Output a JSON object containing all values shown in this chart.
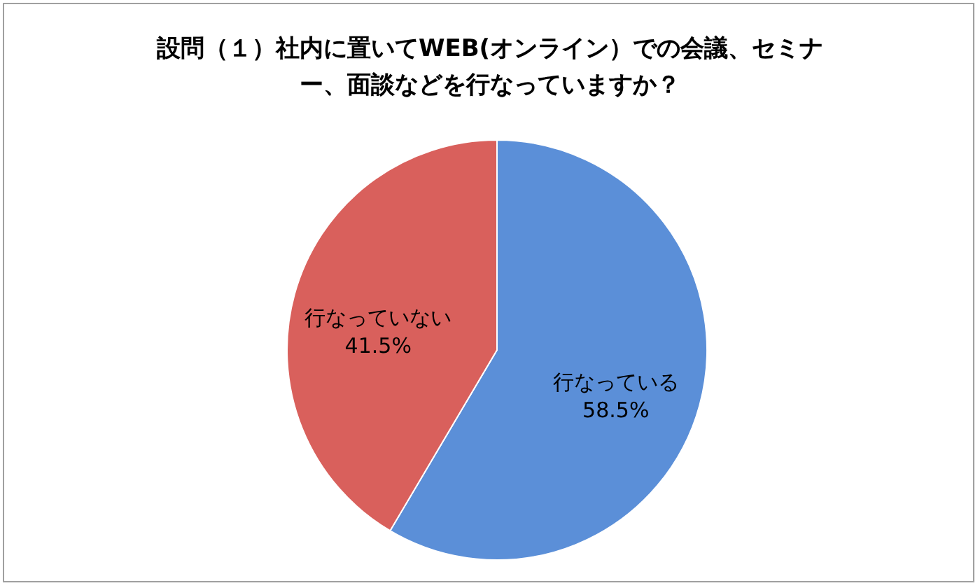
{
  "chart_data": {
    "type": "pie",
    "title": "設問（１）社内に置いてWEB(オンライン）での会議、セミナー、面談などを行なっていますか？",
    "categories": [
      "行なっている",
      "行なっていない"
    ],
    "values": [
      58.5,
      41.5
    ],
    "colors": [
      "#5b8fd8",
      "#d9605c"
    ],
    "value_labels": [
      "58.5%",
      "41.5%"
    ],
    "legend": false
  }
}
